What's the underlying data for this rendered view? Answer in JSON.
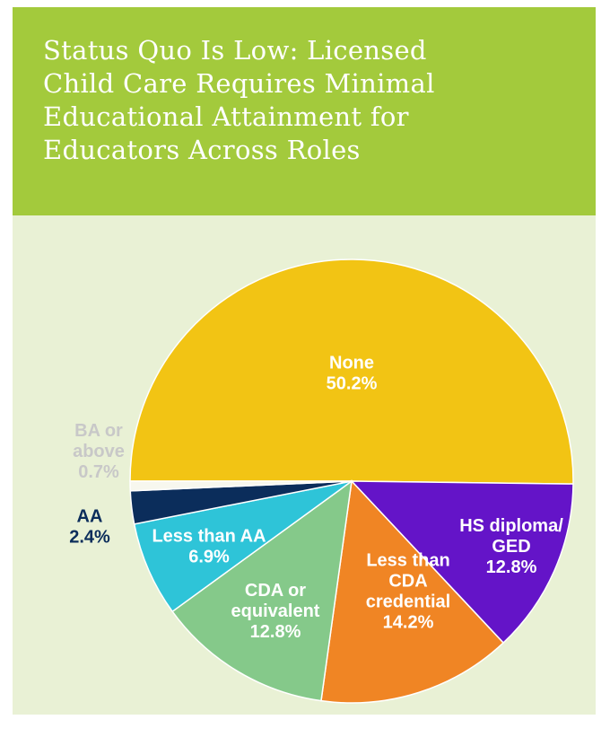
{
  "header": {
    "title_lines": [
      "Status Quo Is Low: Licensed",
      "Child Care Requires Minimal",
      "Educational Attainment for",
      "Educators Across Roles"
    ]
  },
  "chart_data": {
    "type": "pie",
    "title": "Status Quo Is Low: Licensed Child Care Requires Minimal Educational Attainment for Educators Across Roles",
    "unit": "%",
    "start": "9 o'clock",
    "direction": "clockwise",
    "slices": [
      {
        "name": "None",
        "value": 50.2,
        "label": [
          "None",
          "50.2%"
        ],
        "color": "#f2c414",
        "label_color": "#ffffff"
      },
      {
        "name": "HS diploma/ GED",
        "value": 12.8,
        "label": [
          "HS diploma/",
          "GED",
          "12.8%"
        ],
        "color": "#6414c8",
        "label_color": "#ffffff"
      },
      {
        "name": "Less than CDA credential",
        "value": 14.2,
        "label": [
          "Less than",
          "CDA",
          "credential",
          "14.2%"
        ],
        "color": "#f08524",
        "label_color": "#ffffff"
      },
      {
        "name": "CDA or equivalent",
        "value": 12.8,
        "label": [
          "CDA or",
          "equivalent",
          "12.8%"
        ],
        "color": "#85c98a",
        "label_color": "#ffffff"
      },
      {
        "name": "Less than AA",
        "value": 6.9,
        "label": [
          "Less than AA",
          "6.9%"
        ],
        "color": "#2ec4d8",
        "label_color": "#ffffff"
      },
      {
        "name": "AA",
        "value": 2.4,
        "label": [
          "AA",
          "2.4%"
        ],
        "color": "#0b2d5b",
        "label_color": "#0b2d5b"
      },
      {
        "name": "BA or above",
        "value": 0.7,
        "label": [
          "BA or",
          "above",
          "0.7%"
        ],
        "color": "#f7f7ee",
        "label_color": "#c8c8c8"
      }
    ]
  }
}
